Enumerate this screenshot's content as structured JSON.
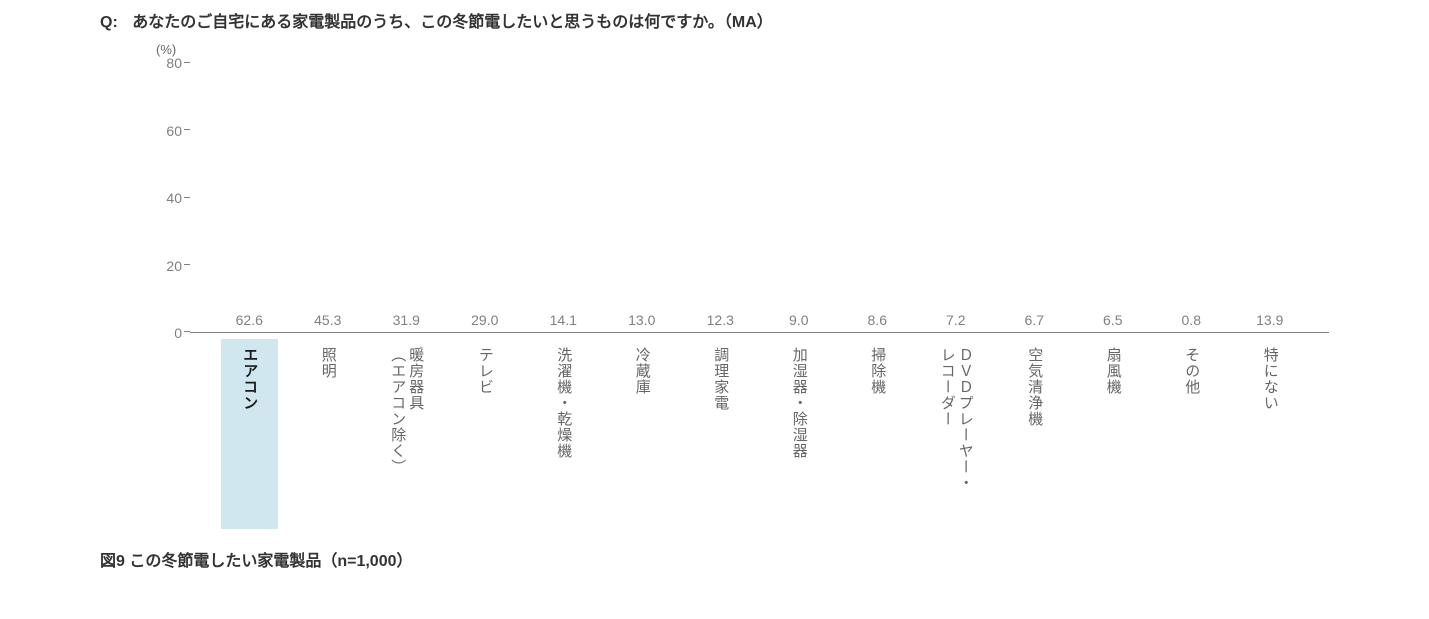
{
  "question_prefix": "Q:",
  "question_text": "あなたのご自宅にある家電製品のうち、この冬節電したいと思うものは何ですか。（MA）",
  "caption": "図9  この冬節電したい家電製品（n=1,000）",
  "chart": {
    "type": "bar",
    "unit_label": "(%)",
    "ylim": [
      0,
      80
    ],
    "ytick_step": 20,
    "yticks": [
      0,
      20,
      40,
      60,
      80
    ],
    "bar_default_color": "#cfcfcf",
    "bar_highlight_color": "#4d94c4",
    "highlight_bg_color": "#d1e7ef",
    "axis_color": "#808080",
    "value_label_color": "#808080",
    "value_label_fontsize": 14,
    "xlabel_fontsize": 15,
    "background_color": "#ffffff",
    "bar_width_ratio": 0.56,
    "categories": [
      {
        "label": "エアコン",
        "value": 62.6,
        "value_text": "62.6",
        "highlight": true
      },
      {
        "label": "照明",
        "value": 45.3,
        "value_text": "45.3",
        "highlight": false
      },
      {
        "label": "暖房器具\n（エアコン除く）",
        "value": 31.9,
        "value_text": "31.9",
        "highlight": false
      },
      {
        "label": "テレビ",
        "value": 29.0,
        "value_text": "29.0",
        "highlight": false
      },
      {
        "label": "洗濯機・乾燥機",
        "value": 14.1,
        "value_text": "14.1",
        "highlight": false
      },
      {
        "label": "冷蔵庫",
        "value": 13.0,
        "value_text": "13.0",
        "highlight": false
      },
      {
        "label": "調理家電",
        "value": 12.3,
        "value_text": "12.3",
        "highlight": false
      },
      {
        "label": "加湿器・除湿器",
        "value": 9.0,
        "value_text": "9.0",
        "highlight": false
      },
      {
        "label": "掃除機",
        "value": 8.6,
        "value_text": "8.6",
        "highlight": false
      },
      {
        "label": "ＤＶＤプレーヤー・\nレコーダー",
        "value": 7.2,
        "value_text": "7.2",
        "highlight": false
      },
      {
        "label": "空気清浄機",
        "value": 6.7,
        "value_text": "6.7",
        "highlight": false
      },
      {
        "label": "扇風機",
        "value": 6.5,
        "value_text": "6.5",
        "highlight": false
      },
      {
        "label": "その他",
        "value": 0.8,
        "value_text": "0.8",
        "highlight": false
      },
      {
        "label": "特にない",
        "value": 13.9,
        "value_text": "13.9",
        "highlight": false
      }
    ]
  }
}
